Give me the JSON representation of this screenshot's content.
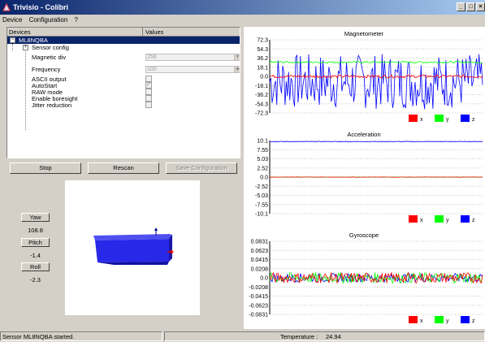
{
  "window": {
    "title": "Trivisio - Colibri"
  },
  "menu": {
    "items": [
      "Device",
      "Configuration",
      "?"
    ]
  },
  "tree": {
    "headers": {
      "devices": "Devices",
      "values": "Values"
    },
    "root": "ML8NQBA",
    "sensor_config": "Sensor config",
    "rows": [
      {
        "label": "Magnetic div",
        "value": "256",
        "kind": "combo"
      },
      {
        "label": "Frequency",
        "value": "100",
        "kind": "spin"
      },
      {
        "label": "ASCII output",
        "checked": false,
        "kind": "check"
      },
      {
        "label": "AutoStart",
        "checked": true,
        "kind": "check"
      },
      {
        "label": "RAW mode",
        "checked": false,
        "kind": "check"
      },
      {
        "label": "Enable boresight",
        "checked": false,
        "kind": "check"
      },
      {
        "label": "Jitter reduction",
        "checked": false,
        "kind": "check"
      }
    ]
  },
  "buttons": {
    "stop": "Stop",
    "rescan": "Rescan",
    "save": "Save Configuration"
  },
  "orientation": {
    "yaw_label": "Yaw",
    "yaw_value": "108.8",
    "pitch_label": "Pitch",
    "pitch_value": "-1.4",
    "roll_label": "Roll",
    "roll_value": "-2.3"
  },
  "status": {
    "message": "Sensor ML8NQBA started.",
    "temperature_label": "Temperature :",
    "temperature_value": "24.94"
  },
  "colors": {
    "x": "#ff0000",
    "y": "#00ff00",
    "z": "#0000ff",
    "selection": "#0a246a",
    "box3d": "#2828e8"
  },
  "chart_data": [
    {
      "type": "line",
      "title": "Magnetometer",
      "y_ticks": [
        "72.3",
        "54.3",
        "36.2",
        "18.1",
        "0.0",
        "-18.1",
        "-36.2",
        "-54.3",
        "-72.3"
      ],
      "ylim": [
        -72.3,
        72.3
      ],
      "legend": [
        "x",
        "y",
        "z"
      ],
      "series": [
        {
          "name": "x",
          "approx_level": 0.0,
          "noise": 3
        },
        {
          "name": "y",
          "approx_level": 28,
          "noise": 2
        },
        {
          "name": "z",
          "approx_level": -10,
          "noise": 55
        }
      ]
    },
    {
      "type": "line",
      "title": "Acceleration",
      "y_ticks": [
        "10.1",
        "7.55",
        "5.03",
        "2.52",
        "0.0",
        "-2.52",
        "-5.03",
        "-7.55",
        "-10.1"
      ],
      "ylim": [
        -10.1,
        10.1
      ],
      "legend": [
        "x",
        "y",
        "z"
      ],
      "series": [
        {
          "name": "x",
          "approx_level": 0.0,
          "noise": 0.05
        },
        {
          "name": "y",
          "approx_level": 0.0,
          "noise": 0.05
        },
        {
          "name": "z",
          "approx_level": 9.8,
          "noise": 0.08
        }
      ]
    },
    {
      "type": "line",
      "title": "Gyroscope",
      "y_ticks": [
        "0.0831",
        "0.0623",
        "0.0415",
        "0.0208",
        "0.0",
        "-0.0208",
        "-0.0415",
        "-0.0623",
        "-0.0831"
      ],
      "ylim": [
        -0.0831,
        0.0831
      ],
      "legend": [
        "x",
        "y",
        "z"
      ],
      "series": [
        {
          "name": "x",
          "approx_level": 0.0,
          "noise": 0.012
        },
        {
          "name": "y",
          "approx_level": 0.0,
          "noise": 0.012
        },
        {
          "name": "z",
          "approx_level": 0.0,
          "noise": 0.01
        }
      ]
    }
  ]
}
